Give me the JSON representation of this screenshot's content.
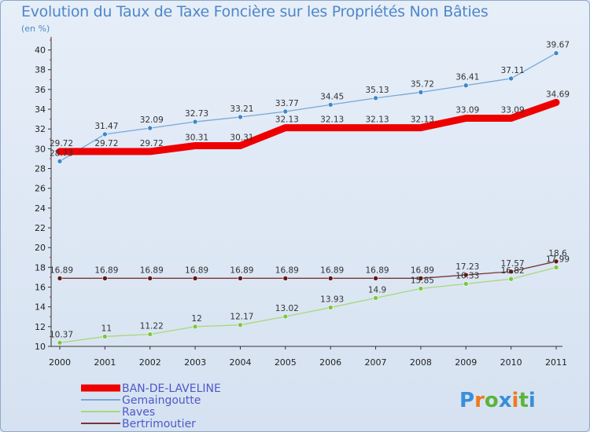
{
  "chart_data": {
    "type": "line",
    "title": "Evolution du Taux de Taxe Foncière sur les Propriétés Non Bâties",
    "ylabel": "(en %)",
    "xlabel": "",
    "x": [
      "2000",
      "2001",
      "2002",
      "2003",
      "2004",
      "2005",
      "2006",
      "2007",
      "2008",
      "2009",
      "2010",
      "2011"
    ],
    "ylim": [
      10,
      41
    ],
    "yticks": [
      10,
      12,
      14,
      16,
      18,
      20,
      22,
      24,
      26,
      28,
      30,
      32,
      34,
      36,
      38,
      40
    ],
    "series": [
      {
        "name": "Gemaingoutte",
        "color": "#77a8d8",
        "marker": "#3f87c8",
        "width": 1.3,
        "values": [
          28.73,
          31.47,
          32.09,
          32.73,
          33.21,
          33.77,
          34.45,
          35.13,
          35.72,
          36.41,
          37.11,
          39.67
        ],
        "labels": [
          "28.73",
          "31.47",
          "32.09",
          "32.73",
          "33.21",
          "33.77",
          "34.45",
          "35.13",
          "35.72",
          "36.41",
          "37.11",
          "39.67"
        ]
      },
      {
        "name": "BAN-DE-LAVELINE",
        "color": "#ee0000",
        "marker": "#ee0000",
        "width": 9,
        "values": [
          29.72,
          29.72,
          29.72,
          30.31,
          30.31,
          32.13,
          32.13,
          32.13,
          32.13,
          33.09,
          33.09,
          34.69
        ],
        "labels": [
          "29.72",
          "29.72",
          "29.72",
          "30.31",
          "30.31",
          "32.13",
          "32.13",
          "32.13",
          "32.13",
          "33.09",
          "33.09",
          "34.69"
        ]
      },
      {
        "name": "Raves",
        "color": "#a8d878",
        "marker": "#7cc644",
        "width": 1.3,
        "values": [
          10.37,
          11,
          11.22,
          12,
          12.17,
          13.02,
          13.93,
          14.9,
          15.85,
          16.33,
          16.82,
          17.99
        ],
        "labels": [
          "10.37",
          "11",
          "11.22",
          "12",
          "12.17",
          "13.02",
          "13.93",
          "14.9",
          "15.85",
          "16.33",
          "16.82",
          "17.99"
        ]
      },
      {
        "name": "Bertrimoutier",
        "color": "#7a3535",
        "marker": "#601818",
        "width": 1.3,
        "values": [
          16.89,
          16.89,
          16.89,
          16.89,
          16.89,
          16.89,
          16.89,
          16.89,
          16.89,
          17.23,
          17.57,
          18.6
        ],
        "labels": [
          "16.89",
          "16.89",
          "16.89",
          "16.89",
          "16.89",
          "16.89",
          "16.89",
          "16.89",
          "16.89",
          "17.23",
          "17.57",
          "18.6"
        ]
      }
    ],
    "legend": [
      "BAN-DE-LAVELINE",
      "Gemaingoutte",
      "Raves",
      "Bertrimoutier"
    ],
    "legend_position": "bottom-left",
    "grid": false
  },
  "logo": {
    "text": "Proxiti",
    "letters": [
      "P",
      "r",
      "o",
      "x",
      "i",
      "t",
      "i"
    ],
    "colors": [
      "#3a8ed8",
      "#ef7a1a",
      "#5ab53a",
      "#3a8ed8",
      "#ef7a1a",
      "#5ab53a",
      "#3a8ed8"
    ]
  }
}
